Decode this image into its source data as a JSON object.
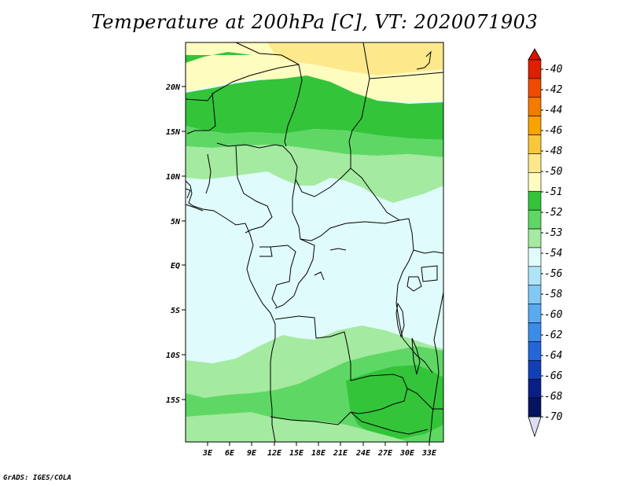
{
  "title": "Temperature at 200hPa [C], VT: 2020071903",
  "credit": "GrADS: IGES/COLA",
  "map": {
    "lon_ticks": [
      "3E",
      "6E",
      "9E",
      "12E",
      "15E",
      "18E",
      "21E",
      "24E",
      "27E",
      "30E",
      "33E"
    ],
    "lat_ticks": [
      "20N",
      "15N",
      "10N",
      "5N",
      "EQ",
      "5S",
      "10S",
      "15S"
    ]
  },
  "colorbar": {
    "labels": [
      "-40",
      "-42",
      "-44",
      "-46",
      "-48",
      "-50",
      "-51",
      "-52",
      "-53",
      "-54",
      "-56",
      "-58",
      "-60",
      "-62",
      "-64",
      "-66",
      "-68",
      "-70"
    ],
    "colors": [
      "#e01e00",
      "#f04b00",
      "#f57a00",
      "#f9a300",
      "#f8c83a",
      "#fde98c",
      "#fffcc0",
      "#33c43a",
      "#5fd765",
      "#a4eaa0",
      "#e0fbfb",
      "#aee4f8",
      "#82c8f5",
      "#5aaaf0",
      "#3c8be8",
      "#2466d8",
      "#1240b4",
      "#0a1f86",
      "#051461"
    ],
    "bottom_color": "#dcdcf5"
  },
  "colors": {
    "sub51": "#fffcc0",
    "sub50": "#fde98c",
    "c52": "#33c43a",
    "c53": "#5fd765",
    "c54": "#a4eaa0",
    "c56": "#e0fbfb"
  }
}
